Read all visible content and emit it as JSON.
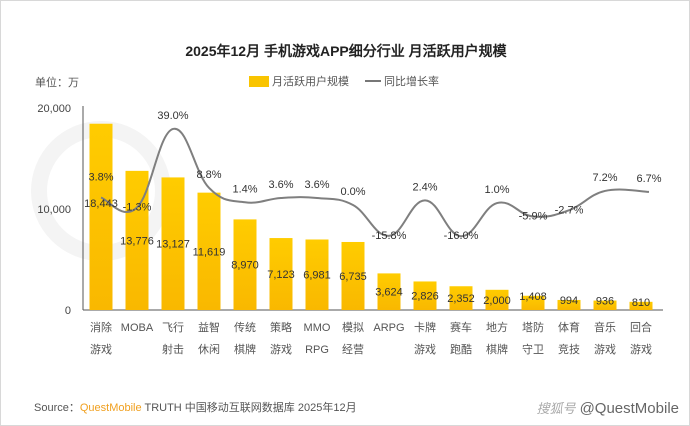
{
  "chart_data": {
    "type": "bar",
    "title": "2025年12月 手机游戏APP细分行业 月活跃用户规模",
    "unit_label": "单位：万",
    "categories": [
      [
        "消除",
        "游戏"
      ],
      [
        "MOBA",
        ""
      ],
      [
        "飞行",
        "射击"
      ],
      [
        "益智",
        "休闲"
      ],
      [
        "传统",
        "棋牌"
      ],
      [
        "策略",
        "游戏"
      ],
      [
        "MMO",
        "RPG"
      ],
      [
        "模拟",
        "经营"
      ],
      [
        "ARPG",
        ""
      ],
      [
        "卡牌",
        "游戏"
      ],
      [
        "赛车",
        "跑酷"
      ],
      [
        "地方",
        "棋牌"
      ],
      [
        "塔防",
        "守卫"
      ],
      [
        "体育",
        "竞技"
      ],
      [
        "音乐",
        "游戏"
      ],
      [
        "回合",
        "游戏"
      ]
    ],
    "series": [
      {
        "name": "月活跃用户规模",
        "type": "bar",
        "color": "#f9c400",
        "values": [
          18443,
          13776,
          13127,
          11619,
          8970,
          7123,
          6981,
          6735,
          3624,
          2826,
          2352,
          2000,
          1408,
          994,
          936,
          810
        ],
        "labels": [
          "18,443",
          "13,776",
          "13,127",
          "11,619",
          "8,970",
          "7,123",
          "6,981",
          "6,735",
          "3,624",
          "2,826",
          "2,352",
          "2,000",
          "1,408",
          "994",
          "936",
          "810"
        ]
      },
      {
        "name": "同比增长率",
        "type": "line",
        "color": "#7f7f7f",
        "axis": "secondary-hidden",
        "values": [
          3.8,
          -1.3,
          39.0,
          8.8,
          1.4,
          3.6,
          3.6,
          0.0,
          -15.8,
          2.4,
          -16.0,
          1.0,
          -5.9,
          -2.7,
          7.2,
          6.7
        ],
        "labels": [
          "3.8%",
          "-1.3%",
          "39.0%",
          "8.8%",
          "1.4%",
          "3.6%",
          "3.6%",
          "0.0%",
          "-15.8%",
          "2.4%",
          "-16.0%",
          "1.0%",
          "-5.9%",
          "-2.7%",
          "7.2%",
          "6.7%"
        ]
      }
    ],
    "yticks": [
      "0",
      "10,000",
      "20,000"
    ],
    "ytick_values": [
      0,
      10000,
      20000
    ],
    "ylim": [
      0,
      20000
    ],
    "grid": false,
    "legend": "top-center"
  },
  "footer": {
    "source_prefix": "Source：",
    "source_brand": "QuestMobile",
    "source_rest": " TRUTH 中国移动互联网数据库 2025年12月",
    "watermark": "@QuestMobile",
    "watermark_prefix": "搜狐号"
  },
  "watermark_bg": "QUESTMOBILE"
}
